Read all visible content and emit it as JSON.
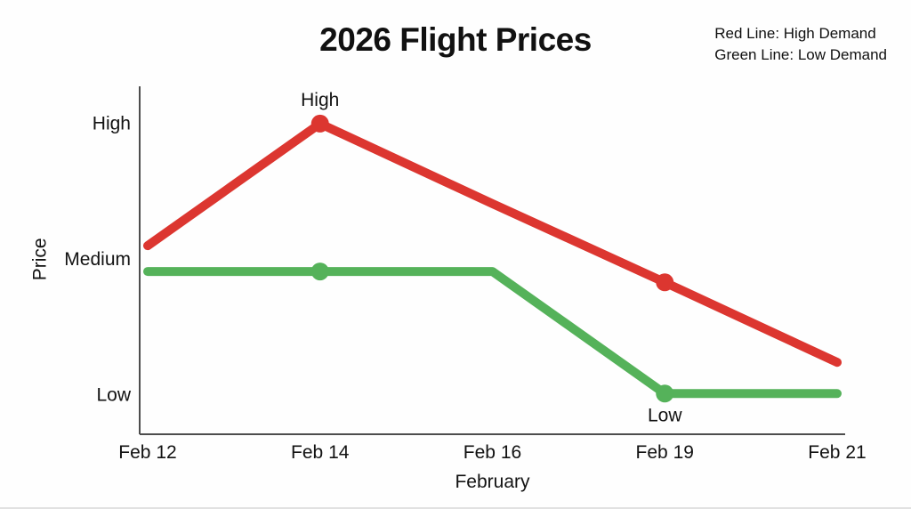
{
  "title": "2026 Flight Prices",
  "legend": {
    "line1": "Red Line: High Demand",
    "line2": "Green Line: Low Demand"
  },
  "chart_data": {
    "type": "line",
    "title": "2026 Flight Prices",
    "categories": [
      "Feb 12",
      "Feb 14",
      "Feb 16",
      "Feb 19",
      "Feb 21"
    ],
    "xlabel": "February",
    "ylabel": "Price",
    "y_tick_labels": [
      "Low",
      "Medium",
      "High"
    ],
    "y_tick_values": [
      1,
      2,
      3
    ],
    "ylim": [
      0.71,
      3.275
    ],
    "grid": false,
    "legend_position": "top-right",
    "axis_color": "#4d4d4d",
    "series": [
      {
        "name": "High Demand",
        "color": "#dc3630",
        "values": [
          2.1,
          3.0,
          2.41,
          1.83,
          1.24
        ],
        "marker_indices": [
          1,
          3
        ]
      },
      {
        "name": "Low Demand",
        "color": "#55b25a",
        "values": [
          1.91,
          1.91,
          1.91,
          1.01,
          1.01
        ],
        "marker_indices": [
          1,
          3
        ]
      }
    ],
    "annotations": [
      {
        "series": 0,
        "index": 1,
        "text": "High",
        "position": "above"
      },
      {
        "series": 1,
        "index": 3,
        "text": "Low",
        "position": "below"
      }
    ]
  }
}
